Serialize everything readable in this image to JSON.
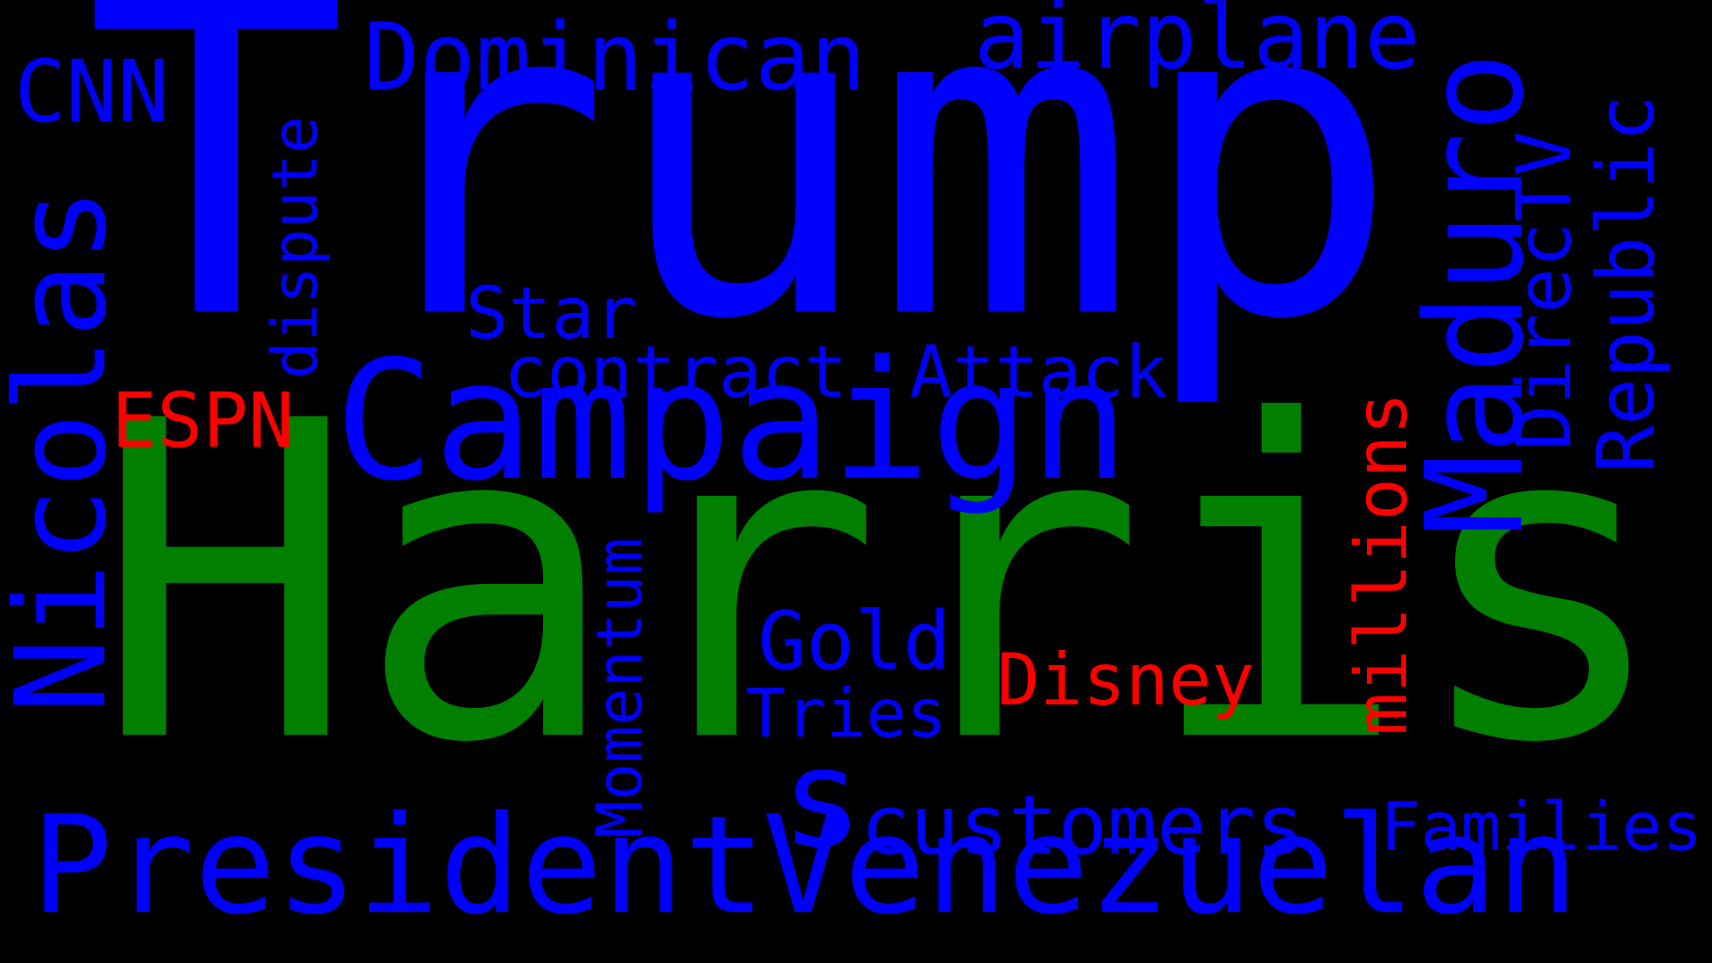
{
  "words": {
    "trump": {
      "text": "Trump",
      "color": "#0000ff"
    },
    "harris": {
      "text": "Harris",
      "color": "#007f00"
    },
    "campaign": {
      "text": "Campaign",
      "color": "#0000ff"
    },
    "president": {
      "text": "President",
      "color": "#0000ff"
    },
    "venezuelan": {
      "text": "Venezuelan",
      "color": "#0000ff"
    },
    "nicolas": {
      "text": "Nicolas",
      "color": "#0000ff"
    },
    "maduro": {
      "text": "Maduro",
      "color": "#0000ff"
    },
    "dominican": {
      "text": "Dominican",
      "color": "#0000ff"
    },
    "airplane": {
      "text": "airplane",
      "color": "#0000ff"
    },
    "republic": {
      "text": "Republic",
      "color": "#0000ff"
    },
    "directv": {
      "text": "DirecTV",
      "color": "#0000ff"
    },
    "cnn": {
      "text": "CNN",
      "color": "#0000ff"
    },
    "dispute": {
      "text": "dispute",
      "color": "#0000ff"
    },
    "star": {
      "text": "Star",
      "color": "#0000ff"
    },
    "contract": {
      "text": "contract",
      "color": "#0000ff"
    },
    "attack": {
      "text": "Attack",
      "color": "#0000ff"
    },
    "espn": {
      "text": "ESPN",
      "color": "#ff0000"
    },
    "momentum": {
      "text": "Momentum",
      "color": "#0000ff"
    },
    "gold": {
      "text": "Gold",
      "color": "#0000ff"
    },
    "tries": {
      "text": "Tries",
      "color": "#0000ff"
    },
    "disney": {
      "text": "Disney",
      "color": "#ff0000"
    },
    "millions": {
      "text": "millions",
      "color": "#ff0000"
    },
    "s": {
      "text": "s",
      "color": "#0000ff"
    },
    "customers": {
      "text": "customers",
      "color": "#0000ff"
    },
    "families": {
      "text": "Families",
      "color": "#0000ff"
    }
  },
  "background_color": "#000000"
}
